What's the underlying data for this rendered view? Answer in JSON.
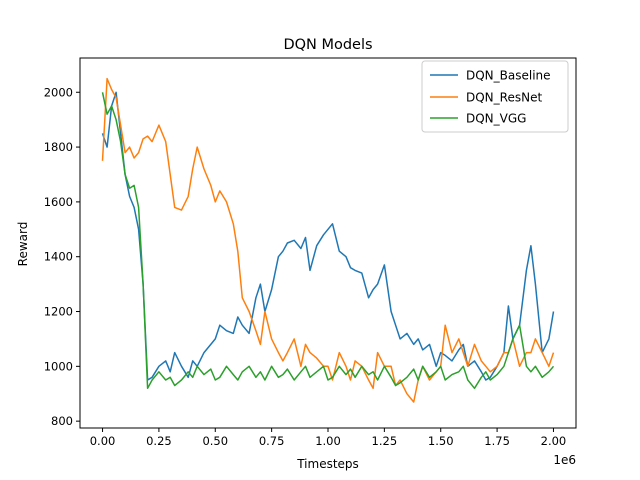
{
  "chart_data": {
    "type": "line",
    "title": "DQN Models",
    "xlabel": "Timesteps",
    "ylabel": "Reward",
    "x_offset_label": "1e6",
    "xlim": [
      -0.1,
      2.1
    ],
    "ylim": [
      775,
      2125
    ],
    "x_ticks": [
      {
        "value": 0.0,
        "label": "0.00"
      },
      {
        "value": 0.25,
        "label": "0.25"
      },
      {
        "value": 0.5,
        "label": "0.50"
      },
      {
        "value": 0.75,
        "label": "0.75"
      },
      {
        "value": 1.0,
        "label": "1.00"
      },
      {
        "value": 1.25,
        "label": "1.25"
      },
      {
        "value": 1.5,
        "label": "1.50"
      },
      {
        "value": 1.75,
        "label": "1.75"
      },
      {
        "value": 2.0,
        "label": "2.00"
      }
    ],
    "y_ticks": [
      {
        "value": 800,
        "label": "800"
      },
      {
        "value": 1000,
        "label": "1000"
      },
      {
        "value": 1200,
        "label": "1200"
      },
      {
        "value": 1400,
        "label": "1400"
      },
      {
        "value": 1600,
        "label": "1600"
      },
      {
        "value": 1800,
        "label": "1800"
      },
      {
        "value": 2000,
        "label": "2000"
      }
    ],
    "grid": false,
    "legend_position": "top-right",
    "series": [
      {
        "name": "DQN_Baseline",
        "color": "#1f77b4",
        "x": [
          0.0,
          0.02,
          0.04,
          0.06,
          0.08,
          0.1,
          0.12,
          0.14,
          0.16,
          0.18,
          0.2,
          0.22,
          0.25,
          0.28,
          0.3,
          0.32,
          0.35,
          0.38,
          0.4,
          0.42,
          0.45,
          0.48,
          0.5,
          0.52,
          0.55,
          0.58,
          0.6,
          0.62,
          0.65,
          0.68,
          0.7,
          0.72,
          0.75,
          0.78,
          0.8,
          0.82,
          0.85,
          0.88,
          0.9,
          0.92,
          0.95,
          0.98,
          1.0,
          1.02,
          1.05,
          1.08,
          1.1,
          1.12,
          1.15,
          1.18,
          1.2,
          1.22,
          1.25,
          1.28,
          1.3,
          1.32,
          1.35,
          1.38,
          1.4,
          1.42,
          1.45,
          1.48,
          1.5,
          1.52,
          1.55,
          1.58,
          1.6,
          1.62,
          1.65,
          1.68,
          1.7,
          1.72,
          1.75,
          1.78,
          1.8,
          1.82,
          1.85,
          1.88,
          1.9,
          1.92,
          1.95,
          1.98,
          2.0
        ],
        "y": [
          1850,
          1800,
          1950,
          2000,
          1850,
          1700,
          1620,
          1580,
          1500,
          1300,
          950,
          960,
          1000,
          1020,
          980,
          1050,
          1000,
          960,
          1020,
          1000,
          1050,
          1080,
          1100,
          1150,
          1130,
          1120,
          1180,
          1150,
          1120,
          1250,
          1300,
          1200,
          1280,
          1400,
          1420,
          1450,
          1460,
          1430,
          1470,
          1350,
          1440,
          1480,
          1500,
          1520,
          1420,
          1400,
          1360,
          1350,
          1340,
          1250,
          1280,
          1300,
          1370,
          1200,
          1150,
          1100,
          1120,
          1080,
          1100,
          1060,
          1080,
          1000,
          1050,
          1040,
          1020,
          1060,
          1080,
          1000,
          1020,
          980,
          950,
          960,
          1000,
          1050,
          1220,
          1100,
          1150,
          1350,
          1440,
          1300,
          1050,
          1100,
          1200
        ]
      },
      {
        "name": "DQN_ResNet",
        "color": "#ff7f0e",
        "x": [
          0.0,
          0.02,
          0.04,
          0.06,
          0.08,
          0.1,
          0.12,
          0.14,
          0.16,
          0.18,
          0.2,
          0.22,
          0.25,
          0.28,
          0.3,
          0.32,
          0.35,
          0.38,
          0.4,
          0.42,
          0.45,
          0.48,
          0.5,
          0.52,
          0.55,
          0.58,
          0.6,
          0.62,
          0.65,
          0.68,
          0.7,
          0.72,
          0.75,
          0.78,
          0.8,
          0.82,
          0.85,
          0.88,
          0.9,
          0.92,
          0.95,
          0.98,
          1.0,
          1.02,
          1.05,
          1.08,
          1.1,
          1.12,
          1.15,
          1.18,
          1.2,
          1.22,
          1.25,
          1.28,
          1.3,
          1.32,
          1.35,
          1.38,
          1.4,
          1.42,
          1.45,
          1.48,
          1.5,
          1.52,
          1.55,
          1.58,
          1.6,
          1.62,
          1.65,
          1.68,
          1.7,
          1.72,
          1.75,
          1.78,
          1.8,
          1.82,
          1.85,
          1.88,
          1.9,
          1.92,
          1.95,
          1.98,
          2.0
        ],
        "y": [
          1750,
          2050,
          2010,
          1980,
          1880,
          1780,
          1800,
          1760,
          1780,
          1830,
          1840,
          1820,
          1880,
          1820,
          1700,
          1580,
          1570,
          1620,
          1720,
          1800,
          1720,
          1660,
          1600,
          1640,
          1600,
          1520,
          1420,
          1250,
          1200,
          1130,
          1080,
          1200,
          1100,
          1050,
          1020,
          1050,
          1100,
          1000,
          1080,
          1050,
          1030,
          1000,
          1000,
          950,
          1050,
          1000,
          950,
          1020,
          1000,
          950,
          920,
          1050,
          1000,
          1000,
          930,
          950,
          900,
          870,
          950,
          1000,
          950,
          980,
          1000,
          1150,
          1050,
          1100,
          1050,
          1000,
          1080,
          1020,
          1000,
          980,
          1000,
          1050,
          1050,
          1100,
          1000,
          1050,
          1050,
          1100,
          1050,
          1000,
          1050
        ]
      },
      {
        "name": "DQN_VGG",
        "color": "#2ca02c",
        "x": [
          0.0,
          0.02,
          0.04,
          0.06,
          0.08,
          0.1,
          0.12,
          0.14,
          0.16,
          0.18,
          0.2,
          0.22,
          0.25,
          0.28,
          0.3,
          0.32,
          0.35,
          0.38,
          0.4,
          0.42,
          0.45,
          0.48,
          0.5,
          0.52,
          0.55,
          0.58,
          0.6,
          0.62,
          0.65,
          0.68,
          0.7,
          0.72,
          0.75,
          0.78,
          0.8,
          0.82,
          0.85,
          0.88,
          0.9,
          0.92,
          0.95,
          0.98,
          1.0,
          1.02,
          1.05,
          1.08,
          1.1,
          1.12,
          1.15,
          1.18,
          1.2,
          1.22,
          1.25,
          1.28,
          1.3,
          1.32,
          1.35,
          1.38,
          1.4,
          1.42,
          1.45,
          1.48,
          1.5,
          1.52,
          1.55,
          1.58,
          1.6,
          1.62,
          1.65,
          1.68,
          1.7,
          1.72,
          1.75,
          1.78,
          1.8,
          1.82,
          1.85,
          1.88,
          1.9,
          1.92,
          1.95,
          1.98,
          2.0
        ],
        "y": [
          2000,
          1920,
          1950,
          1900,
          1820,
          1700,
          1650,
          1660,
          1580,
          1300,
          920,
          950,
          980,
          950,
          960,
          930,
          950,
          980,
          960,
          1000,
          970,
          990,
          950,
          960,
          1000,
          970,
          950,
          980,
          1000,
          960,
          980,
          950,
          1000,
          960,
          970,
          990,
          950,
          980,
          1000,
          960,
          980,
          1000,
          950,
          960,
          1000,
          970,
          990,
          960,
          1000,
          970,
          980,
          950,
          1000,
          960,
          930,
          940,
          960,
          990,
          950,
          1000,
          960,
          980,
          1000,
          950,
          970,
          980,
          1000,
          950,
          920,
          960,
          980,
          950,
          970,
          1000,
          1050,
          1100,
          1150,
          1000,
          980,
          1000,
          960,
          980,
          1000
        ]
      }
    ]
  }
}
